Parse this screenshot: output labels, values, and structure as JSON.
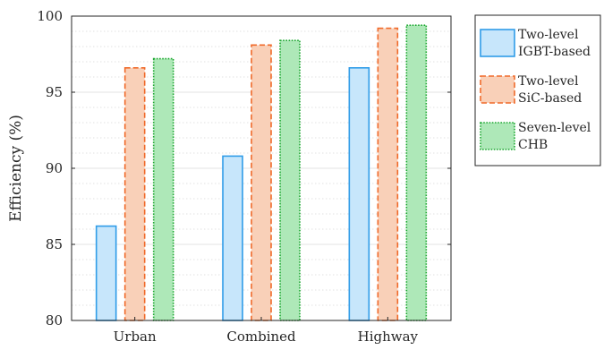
{
  "chart_data": {
    "type": "bar",
    "categories": [
      "Urban",
      "Combined",
      "Highway"
    ],
    "series": [
      {
        "name": "Two-level IGBT-based",
        "legend_lines": [
          "Two-level",
          "IGBT-based"
        ],
        "values": [
          86.2,
          90.8,
          96.6
        ],
        "fill": "#c7e6fb",
        "stroke": "#2f9ce8",
        "dash": "solid"
      },
      {
        "name": "Two-level SiC-based",
        "legend_lines": [
          "Two-level",
          "SiC-based"
        ],
        "values": [
          96.6,
          98.1,
          99.2
        ],
        "fill": "#f9d0b8",
        "stroke": "#f06a2a",
        "dash": "dashed"
      },
      {
        "name": "Seven-level CHB",
        "legend_lines": [
          "Seven-level",
          "CHB"
        ],
        "values": [
          97.2,
          98.4,
          99.4
        ],
        "fill": "#aee8b8",
        "stroke": "#1ea832",
        "dash": "dotted"
      }
    ],
    "ylabel": "Efficiency (%)",
    "xlabel": "",
    "ylim": [
      80,
      100
    ],
    "yticks": [
      80,
      85,
      90,
      95,
      100
    ],
    "grid": true,
    "legend_position": "outside-right-top"
  }
}
